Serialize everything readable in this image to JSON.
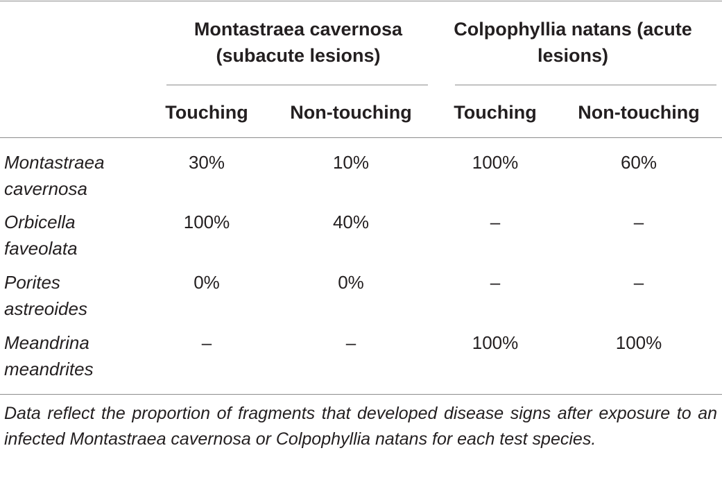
{
  "table": {
    "groups": [
      "Montastraea cavernosa (subacute lesions)",
      "Colpophyllia natans (acute lesions)"
    ],
    "columns": [
      "Touching",
      "Non-touching",
      "Touching",
      "Non-touching"
    ],
    "rows": [
      [
        "Montastraea cavernosa",
        "30%",
        "10%",
        "100%",
        "60%"
      ],
      [
        "Orbicella faveolata",
        "100%",
        "40%",
        "–",
        "–"
      ],
      [
        "Porites astreoides",
        "0%",
        "0%",
        "–",
        "–"
      ],
      [
        "Meandrina meandrites",
        "–",
        "–",
        "100%",
        "100%"
      ]
    ],
    "footnote": "Data reflect the proportion of fragments that developed disease signs after exposure to an infected Montastraea cavernosa or Colpophyllia natans for each test species."
  }
}
